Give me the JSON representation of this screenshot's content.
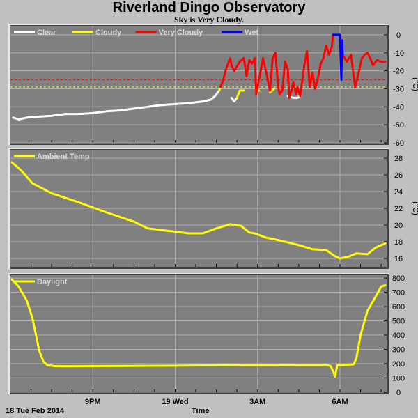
{
  "header": {
    "title": "Riverland Dingo Observatory",
    "subtitle": "Sky is Very Cloudy."
  },
  "footer": {
    "date_label": "18 Tue Feb 2014",
    "time_label": "Time"
  },
  "colors": {
    "background": "#c0c0c0",
    "plot_area": "#808080",
    "grid": "#b0b0b0",
    "clear": "#ffffff",
    "cloudy": "#ffff00",
    "very_cloudy": "#ff0000",
    "wet": "#0000ff"
  },
  "x_axis": {
    "range": [
      18,
      31.7
    ],
    "ticks": [
      {
        "x": 21,
        "label": "9PM"
      },
      {
        "x": 24,
        "label": "19 Wed"
      },
      {
        "x": 27,
        "label": "3AM"
      },
      {
        "x": 30,
        "label": "6AM"
      }
    ],
    "minor_ticks": [
      18.75,
      19.5,
      20.25,
      21,
      21.75,
      22.5,
      23.25,
      24,
      24.75,
      25.5,
      26.25,
      27,
      27.75,
      28.5,
      29.25,
      30,
      30.75,
      31.5
    ]
  },
  "chart_data": [
    {
      "type": "line",
      "ylabel": "(°C)",
      "ylim": [
        -60,
        5
      ],
      "yticks": [
        0,
        -10,
        -20,
        -30,
        -40,
        -50,
        -60
      ],
      "grid": true,
      "legend_position": "top-left",
      "thresholds": [
        {
          "y": -25,
          "color": "#ff0000",
          "style": "dashed"
        },
        {
          "y": -29,
          "color": "#ffff00",
          "style": "dashed"
        }
      ],
      "series": [
        {
          "name": "Clear",
          "color": "#ffffff",
          "segments": [
            [
              [
                18.1,
                -46
              ],
              [
                18.3,
                -47
              ],
              [
                18.6,
                -46
              ],
              [
                19,
                -45.5
              ],
              [
                19.5,
                -45
              ],
              [
                20,
                -44
              ],
              [
                20.5,
                -44
              ],
              [
                21,
                -43.5
              ],
              [
                21.5,
                -42.5
              ],
              [
                22,
                -42
              ],
              [
                22.5,
                -41
              ],
              [
                23,
                -40
              ],
              [
                23.5,
                -39
              ],
              [
                24,
                -38.5
              ],
              [
                24.5,
                -38
              ],
              [
                25,
                -37
              ],
              [
                25.3,
                -36
              ],
              [
                25.45,
                -34
              ],
              [
                25.6,
                -31
              ]
            ],
            [
              [
                26.05,
                -35
              ],
              [
                26.15,
                -37
              ],
              [
                26.25,
                -35
              ]
            ],
            [
              [
                28.1,
                -34
              ],
              [
                28.3,
                -35
              ],
              [
                28.45,
                -35
              ],
              [
                28.55,
                -34
              ]
            ]
          ]
        },
        {
          "name": "Cloudy",
          "color": "#ffff00",
          "segments": [
            [
              [
                25.6,
                -31
              ],
              [
                25.65,
                -29
              ]
            ],
            [
              [
                26.25,
                -35
              ],
              [
                26.35,
                -31
              ],
              [
                26.5,
                -31
              ]
            ],
            [
              [
                26.95,
                -32
              ],
              [
                27.05,
                -31
              ]
            ],
            [
              [
                27.45,
                -32
              ],
              [
                27.6,
                -30
              ]
            ]
          ]
        },
        {
          "name": "Very Cloudy",
          "color": "#ff0000",
          "segments": [
            [
              [
                25.65,
                -29
              ],
              [
                25.75,
                -25
              ],
              [
                25.85,
                -19
              ],
              [
                26.0,
                -13
              ],
              [
                26.05,
                -17
              ],
              [
                26.15,
                -20
              ],
              [
                26.35,
                -15
              ],
              [
                26.5,
                -13
              ],
              [
                26.6,
                -23
              ],
              [
                26.7,
                -14
              ],
              [
                26.8,
                -16
              ],
              [
                26.9,
                -13
              ],
              [
                26.95,
                -33
              ],
              [
                27.0,
                -29
              ],
              [
                27.1,
                -21
              ],
              [
                27.2,
                -13
              ],
              [
                27.3,
                -20
              ],
              [
                27.45,
                -31
              ],
              [
                27.55,
                -13
              ],
              [
                27.65,
                -10
              ],
              [
                27.75,
                -29
              ],
              [
                27.8,
                -33
              ],
              [
                27.9,
                -31
              ],
              [
                28.0,
                -15
              ],
              [
                28.1,
                -19
              ],
              [
                28.15,
                -35
              ],
              [
                28.25,
                -30
              ],
              [
                28.3,
                -26
              ],
              [
                28.4,
                -33
              ],
              [
                28.45,
                -29
              ],
              [
                28.55,
                -34
              ],
              [
                28.7,
                -17
              ],
              [
                28.8,
                -9
              ],
              [
                28.9,
                -29
              ],
              [
                29.0,
                -21
              ],
              [
                29.1,
                -30
              ],
              [
                29.2,
                -24
              ],
              [
                29.3,
                -16
              ],
              [
                29.4,
                -13
              ],
              [
                29.5,
                -6
              ],
              [
                29.6,
                -11
              ],
              [
                29.7,
                -7
              ],
              [
                29.75,
                0
              ]
            ],
            [
              [
                30.1,
                -11
              ],
              [
                30.25,
                -15
              ],
              [
                30.4,
                -11
              ],
              [
                30.55,
                -29
              ],
              [
                30.65,
                -23
              ],
              [
                30.8,
                -13
              ],
              [
                30.9,
                -11
              ],
              [
                31.0,
                -10
              ],
              [
                31.1,
                -13
              ],
              [
                31.2,
                -17
              ],
              [
                31.35,
                -14
              ],
              [
                31.5,
                -15
              ],
              [
                31.65,
                -15
              ]
            ]
          ]
        },
        {
          "name": "Wet",
          "color": "#0000ff",
          "segments": [
            [
              [
                29.75,
                0
              ],
              [
                29.85,
                0
              ],
              [
                30.0,
                0
              ],
              [
                30.05,
                -25
              ],
              [
                30.08,
                -3
              ],
              [
                30.1,
                -11
              ]
            ]
          ]
        }
      ]
    },
    {
      "type": "line",
      "ylabel": "(°C)",
      "ylim": [
        15,
        29
      ],
      "yticks": [
        28,
        26,
        24,
        22,
        20,
        18,
        16
      ],
      "grid": true,
      "legend_position": "top-left",
      "series": [
        {
          "name": "Ambient Temp",
          "color": "#ffff00",
          "x": [
            18.05,
            18.4,
            18.8,
            19.5,
            20.5,
            21.5,
            22.5,
            23,
            23.5,
            24,
            24.5,
            25,
            25.5,
            26,
            26.4,
            26.7,
            26.9,
            27.3,
            27.6,
            28,
            28.5,
            29,
            29.5,
            29.8,
            30,
            30.3,
            30.6,
            31,
            31.3,
            31.65
          ],
          "y": [
            27.5,
            26.5,
            25,
            23.8,
            22.7,
            21.5,
            20.4,
            19.6,
            19.4,
            19.2,
            19.0,
            19.0,
            19.6,
            20.1,
            19.9,
            19.1,
            19.0,
            18.5,
            18.3,
            18.0,
            17.6,
            17.1,
            17.0,
            16.3,
            16.0,
            16.2,
            16.6,
            16.5,
            17.3,
            17.8
          ]
        }
      ]
    },
    {
      "type": "line",
      "ylabel": "",
      "ylim": [
        0,
        820
      ],
      "yticks": [
        800,
        700,
        600,
        500,
        400,
        300,
        200,
        100,
        0
      ],
      "grid": true,
      "legend_position": "top-left",
      "series": [
        {
          "name": "Daylight",
          "color": "#ffff00",
          "x": [
            18.05,
            18.3,
            18.6,
            18.8,
            19.05,
            19.2,
            19.35,
            19.6,
            20,
            21,
            22,
            23,
            24,
            25,
            26,
            27,
            28,
            29,
            29.5,
            29.65,
            29.75,
            29.82,
            29.9,
            30.1,
            30.5,
            30.6,
            30.75,
            31.0,
            31.3,
            31.5,
            31.65
          ],
          "y": [
            790,
            740,
            640,
            520,
            290,
            215,
            190,
            183,
            182,
            183,
            184,
            185,
            186,
            188,
            189,
            190,
            189,
            190,
            190,
            185,
            150,
            110,
            190,
            192,
            195,
            240,
            400,
            570,
            670,
            740,
            750
          ]
        }
      ]
    }
  ]
}
